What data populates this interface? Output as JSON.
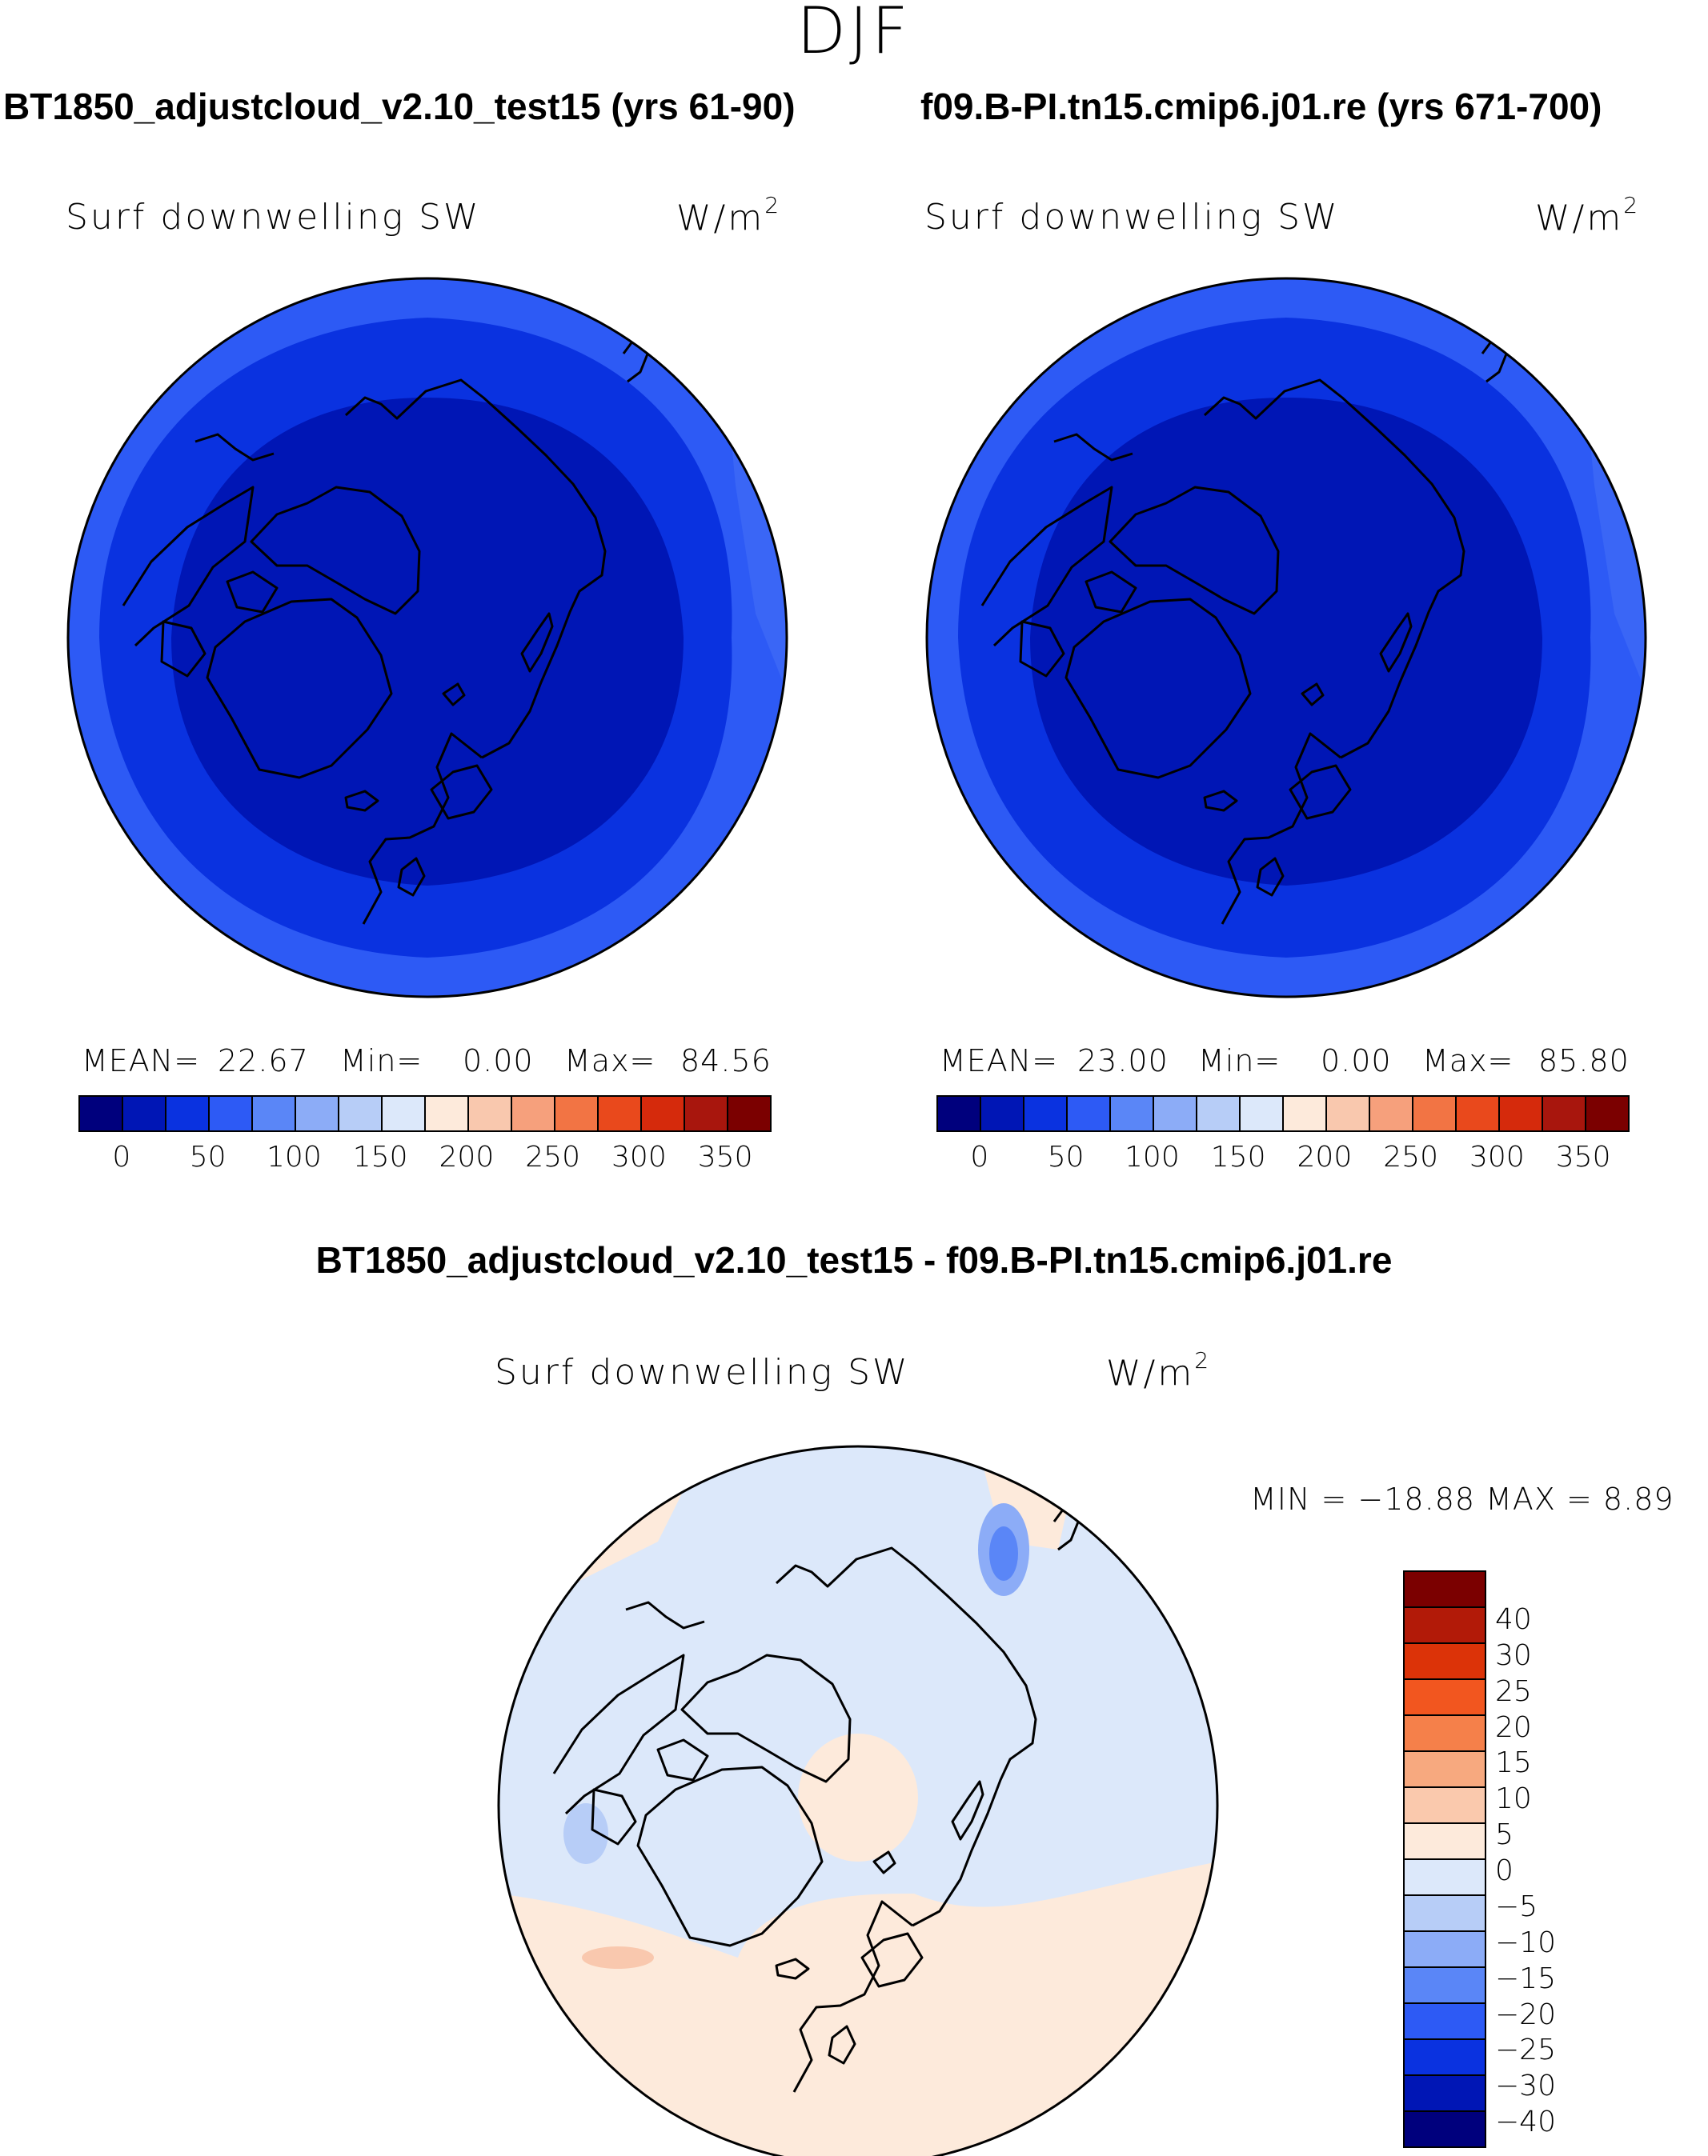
{
  "season": "DJF",
  "panels": [
    {
      "case_title": "BT1850_adjustcloud_v2.10_test15 (yrs 61-90)",
      "variable": "Surf downwelling SW",
      "unit_base": "W/m",
      "unit_exp": "2",
      "stats": {
        "mean_label": "MEAN=",
        "mean": "22.67",
        "min_label": "Min=",
        "min": "0.00",
        "max_label": "Max=",
        "max": "84.56"
      }
    },
    {
      "case_title": "f09.B-PI.tn15.cmip6.j01.re (yrs 671-700)",
      "variable": "Surf downwelling SW",
      "unit_base": "W/m",
      "unit_exp": "2",
      "stats": {
        "mean_label": "MEAN=",
        "mean": "23.00",
        "min_label": "Min=",
        "min": "0.00",
        "max_label": "Max=",
        "max": "85.80"
      }
    }
  ],
  "diff_panel": {
    "title": "BT1850_adjustcloud_v2.10_test15 - f09.B-PI.tn15.cmip6.j01.re",
    "variable": "Surf downwelling SW",
    "unit_base": "W/m",
    "unit_exp": "2",
    "stats_text": "MIN = −18.88 MAX =     8.89"
  },
  "chart_data": [
    {
      "type": "heatmap",
      "projection": "north polar stereographic",
      "title": "BT1850_adjustcloud_v2.10_test15 (yrs 61-90)",
      "variable": "Surf downwelling SW",
      "units": "W/m2",
      "mean": 22.67,
      "min": 0.0,
      "max": 84.56,
      "contour_levels": [
        0,
        25,
        50,
        75,
        100,
        125,
        150,
        175,
        200,
        225,
        250,
        275,
        300,
        325,
        350
      ],
      "colorbar_labels": [
        "0",
        "50",
        "100",
        "150",
        "200",
        "250",
        "300",
        "350"
      ],
      "colorbar_colors": [
        "#00007d",
        "#0016b5",
        "#0a32e0",
        "#2d5af5",
        "#5a86f7",
        "#8cacf7",
        "#b7cdf7",
        "#dce8fa",
        "#fdeadb",
        "#f9c8ae",
        "#f6a07c",
        "#f27444",
        "#e9491c",
        "#d52a0c",
        "#a8160d",
        "#7b0000"
      ]
    },
    {
      "type": "heatmap",
      "projection": "north polar stereographic",
      "title": "f09.B-PI.tn15.cmip6.j01.re (yrs 671-700)",
      "variable": "Surf downwelling SW",
      "units": "W/m2",
      "mean": 23.0,
      "min": 0.0,
      "max": 85.8,
      "contour_levels": [
        0,
        25,
        50,
        75,
        100,
        125,
        150,
        175,
        200,
        225,
        250,
        275,
        300,
        325,
        350
      ],
      "colorbar_labels": [
        "0",
        "50",
        "100",
        "150",
        "200",
        "250",
        "300",
        "350"
      ],
      "colorbar_colors": [
        "#00007d",
        "#0016b5",
        "#0a32e0",
        "#2d5af5",
        "#5a86f7",
        "#8cacf7",
        "#b7cdf7",
        "#dce8fa",
        "#fdeadb",
        "#f9c8ae",
        "#f6a07c",
        "#f27444",
        "#e9491c",
        "#d52a0c",
        "#a8160d",
        "#7b0000"
      ]
    },
    {
      "type": "heatmap",
      "projection": "north polar stereographic",
      "title": "BT1850_adjustcloud_v2.10_test15 - f09.B-PI.tn15.cmip6.j01.re",
      "variable": "Surf downwelling SW",
      "units": "W/m2",
      "min": -18.88,
      "max": 8.89,
      "colorbar_labels": [
        "40",
        "30",
        "25",
        "20",
        "15",
        "10",
        "5",
        "0",
        "−5",
        "−10",
        "−15",
        "−20",
        "−25",
        "−30",
        "−40"
      ],
      "colorbar_colors": [
        "#7b0000",
        "#b21a08",
        "#dc3308",
        "#f2561f",
        "#f5804a",
        "#f7a97f",
        "#fac9ad",
        "#fdeadb",
        "#dce8fa",
        "#b7cdf7",
        "#8cacf7",
        "#5a86f7",
        "#2d5af5",
        "#0a32e0",
        "#0016b5",
        "#00007d"
      ]
    }
  ]
}
